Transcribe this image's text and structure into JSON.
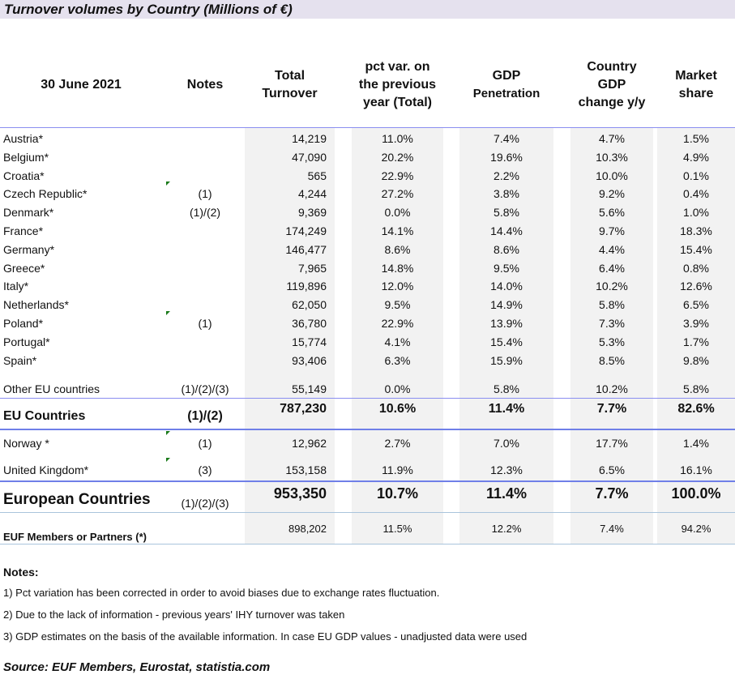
{
  "title": "Turnover volumes by Country (Millions of €)",
  "headers": {
    "date": "30 June 2021",
    "notes": "Notes",
    "total": [
      "Total",
      "Turnover"
    ],
    "pct": [
      "pct var. on",
      "the previous",
      "year (Total)"
    ],
    "gdp_pen": [
      "GDP",
      "Penetration"
    ],
    "gdp_change": [
      "Country",
      "GDP",
      "change y/y"
    ],
    "share": [
      "Market",
      "share"
    ]
  },
  "rows": [
    {
      "country": "Austria*",
      "notes": "",
      "values": [
        "14,219",
        "11.0%",
        "7.4%",
        "4.7%",
        "1.5%"
      ]
    },
    {
      "country": "Belgium*",
      "notes": "",
      "values": [
        "47,090",
        "20.2%",
        "19.6%",
        "10.3%",
        "4.9%"
      ]
    },
    {
      "country": "Croatia*",
      "notes": "",
      "values": [
        "565",
        "22.9%",
        "2.2%",
        "10.0%",
        "0.1%"
      ]
    },
    {
      "country": "Czech Republic*",
      "notes": "(1)",
      "values": [
        "4,244",
        "27.2%",
        "3.8%",
        "9.2%",
        "0.4%"
      ]
    },
    {
      "country": "Denmark*",
      "notes": "(1)/(2)",
      "values": [
        "9,369",
        "0.0%",
        "5.8%",
        "5.6%",
        "1.0%"
      ]
    },
    {
      "country": "France*",
      "notes": "",
      "values": [
        "174,249",
        "14.1%",
        "14.4%",
        "9.7%",
        "18.3%"
      ]
    },
    {
      "country": "Germany*",
      "notes": "",
      "values": [
        "146,477",
        "8.6%",
        "8.6%",
        "4.4%",
        "15.4%"
      ]
    },
    {
      "country": "Greece*",
      "notes": "",
      "values": [
        "7,965",
        "14.8%",
        "9.5%",
        "6.4%",
        "0.8%"
      ]
    },
    {
      "country": "Italy*",
      "notes": "",
      "values": [
        "119,896",
        "12.0%",
        "14.0%",
        "10.2%",
        "12.6%"
      ]
    },
    {
      "country": "Netherlands*",
      "notes": "",
      "values": [
        "62,050",
        "9.5%",
        "14.9%",
        "5.8%",
        "6.5%"
      ]
    },
    {
      "country": "Poland*",
      "notes": "(1)",
      "values": [
        "36,780",
        "22.9%",
        "13.9%",
        "7.3%",
        "3.9%"
      ]
    },
    {
      "country": "Portugal*",
      "notes": "",
      "values": [
        "15,774",
        "4.1%",
        "15.4%",
        "5.3%",
        "1.7%"
      ]
    },
    {
      "country": "Spain*",
      "notes": "",
      "values": [
        "93,406",
        "6.3%",
        "15.9%",
        "8.5%",
        "9.8%"
      ]
    },
    {
      "country": "Other EU countries",
      "notes": "(1)/(2)/(3)",
      "values": [
        "55,149",
        "0.0%",
        "5.8%",
        "10.2%",
        "5.8%"
      ]
    },
    {
      "country": "EU Countries",
      "notes": "(1)/(2)",
      "values": [
        "787,230",
        "10.6%",
        "11.4%",
        "7.7%",
        "82.6%"
      ]
    },
    {
      "country": "Norway *",
      "notes": "(1)",
      "values": [
        "12,962",
        "2.7%",
        "7.0%",
        "17.7%",
        "1.4%"
      ]
    },
    {
      "country": "United Kingdom*",
      "notes": "(3)",
      "values": [
        "153,158",
        "11.9%",
        "12.3%",
        "6.5%",
        "16.1%"
      ]
    },
    {
      "country": "European Countries",
      "notes": "(1)/(2)/(3)",
      "values": [
        "953,350",
        "10.7%",
        "11.4%",
        "7.7%",
        "100.0%"
      ]
    },
    {
      "country": "EUF Members or Partners (*)",
      "notes": "",
      "values": [
        "898,202",
        "11.5%",
        "12.2%",
        "7.4%",
        "94.2%"
      ]
    }
  ],
  "notes_section": {
    "title": "Notes:",
    "lines": [
      "1) Pct variation has been corrected in order to avoid biases due to exchange rates fluctuation.",
      "2) Due to the lack of information - previous years' IHY turnover was taken",
      "3) GDP estimates on the basis of the available information. In case EU GDP values - unadjusted data were used"
    ]
  },
  "source": "Source: EUF Members, Eurostat, statistia.com",
  "colors": {
    "line": "#7b86ee",
    "title_bg": "#e5e1ee",
    "shade": "#f2f2f2",
    "comment": "#1a7a1a"
  }
}
